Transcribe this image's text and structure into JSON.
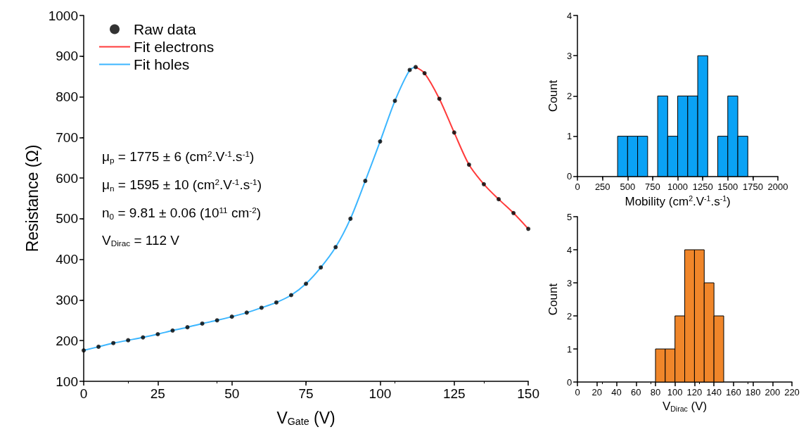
{
  "chart_data": [
    {
      "type": "scatter",
      "xlabel": "V$_{Gate}$ (V)",
      "ylabel": "Resistance (Ω)",
      "xlim": [
        0,
        150
      ],
      "xticks": [
        0,
        25,
        50,
        75,
        100,
        125,
        150
      ],
      "ylim": [
        100,
        1000
      ],
      "yticks": [
        100,
        200,
        300,
        400,
        500,
        600,
        700,
        800,
        900,
        1000
      ],
      "legend": "top left",
      "grid": false,
      "series": [
        {
          "name": "Raw data",
          "type": "scatter",
          "marker": "circle",
          "color": "#000000",
          "x": [
            0,
            5,
            10,
            15,
            20,
            25,
            30,
            35,
            40,
            45,
            50,
            55,
            60,
            65,
            70,
            75,
            80,
            85,
            90,
            95,
            100,
            105,
            110,
            112,
            115,
            120,
            125,
            130,
            135,
            140,
            145,
            150
          ],
          "values": [
            176,
            185,
            194,
            201,
            208,
            216,
            225,
            233,
            242,
            250,
            259,
            269,
            281,
            294,
            312,
            340,
            380,
            430,
            500,
            593,
            690,
            790,
            866,
            873,
            858,
            795,
            712,
            633,
            585,
            548,
            514,
            475
          ]
        },
        {
          "name": "Fit electrons",
          "type": "line",
          "marker": "none",
          "color": "#ff3b3b",
          "x": [
            112,
            115,
            120,
            125,
            130,
            135,
            140,
            145,
            150
          ],
          "values": [
            873,
            858,
            795,
            712,
            633,
            585,
            548,
            514,
            475
          ]
        },
        {
          "name": "Fit holes",
          "type": "line",
          "marker": "none",
          "color": "#3cb6ff",
          "x": [
            0,
            5,
            10,
            15,
            20,
            25,
            30,
            35,
            40,
            45,
            50,
            55,
            60,
            65,
            70,
            75,
            80,
            85,
            90,
            95,
            100,
            105,
            110,
            112
          ],
          "values": [
            176,
            185,
            194,
            201,
            208,
            216,
            225,
            233,
            242,
            250,
            259,
            269,
            281,
            294,
            312,
            340,
            380,
            430,
            500,
            593,
            690,
            790,
            866,
            873
          ]
        }
      ],
      "annotations": [
        "μ$_{p}$ = 1775 ± 6 (cm$^{2}$.V$^{-1}$.s$^{-1}$)",
        "μ$_{n}$ = 1595 ± 10 (cm$^{2}$.V$^{-1}$.s$^{-1}$)",
        "n$_{0}$ = 9.81 ± 0.06 (10$^{11}$ cm$^{-2}$)",
        "V$_{Dirac}$ = 112 V"
      ]
    },
    {
      "type": "histogram",
      "xlabel": "Mobility (cm$^{2}$.V$^{-1}$.s$^{-1}$)",
      "ylabel": "Count",
      "color": "#0aa2f5",
      "bins": [
        400,
        500,
        600,
        700,
        800,
        900,
        1000,
        1100,
        1200,
        1300,
        1400,
        1500,
        1600,
        1700
      ],
      "values": [
        1,
        1,
        1,
        0,
        2,
        1,
        2,
        2,
        3,
        0,
        1,
        2,
        1
      ],
      "xlim": [
        0,
        2000
      ],
      "xticks": [
        0,
        250,
        500,
        750,
        1000,
        1250,
        1500,
        1750,
        2000
      ],
      "ylim": [
        0,
        4
      ],
      "yticks": [
        0,
        1,
        2,
        3,
        4
      ]
    },
    {
      "type": "histogram",
      "xlabel": "V$_{Dirac}$ (V)",
      "ylabel": "Count",
      "color": "#f0862a",
      "bins": [
        80,
        90,
        100,
        110,
        120,
        130,
        140,
        150
      ],
      "values": [
        1,
        1,
        2,
        4,
        4,
        3,
        2
      ],
      "xlim": [
        0,
        220
      ],
      "xticks": [
        0,
        20,
        40,
        60,
        80,
        100,
        120,
        140,
        160,
        180,
        200,
        220
      ],
      "ylim": [
        0,
        5
      ],
      "yticks": [
        0,
        1,
        2,
        3,
        4,
        5
      ]
    }
  ]
}
